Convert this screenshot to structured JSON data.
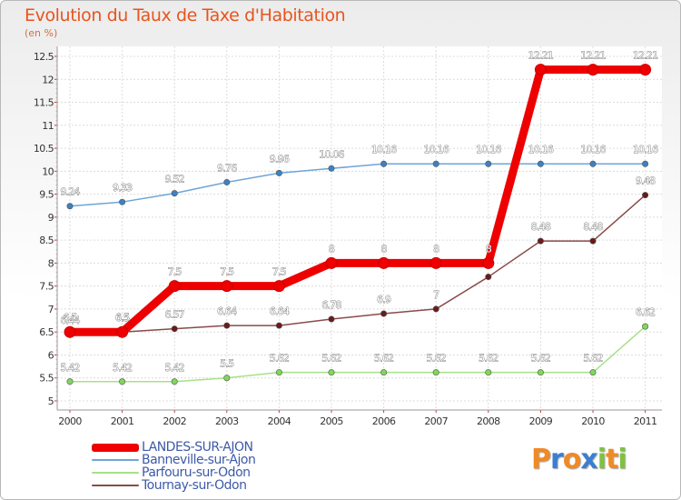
{
  "header": {
    "title": "Evolution du Taux de Taxe d'Habitation",
    "subtitle": "(en %)"
  },
  "chart_data": {
    "type": "line",
    "title": "Evolution du Taux de Taxe d'Habitation",
    "ylabel": "(en %)",
    "xlabel": "",
    "ylim": [
      5,
      12.5
    ],
    "yticks": [
      "5",
      "5.5",
      "6",
      "6.5",
      "7",
      "7.5",
      "8",
      "8.5",
      "9",
      "9.5",
      "10",
      "10.5",
      "11",
      "11.5",
      "12",
      "12.5"
    ],
    "x": [
      "2000",
      "2001",
      "2002",
      "2003",
      "2004",
      "2005",
      "2006",
      "2007",
      "2008",
      "2009",
      "2010",
      "2011"
    ],
    "series": [
      {
        "name": "LANDES-SUR-AJON",
        "color": "#ee0000",
        "marker_fill": "#ee0000",
        "label_color": "#ffffff",
        "values": [
          6.5,
          6.5,
          7.5,
          7.5,
          7.5,
          8,
          8,
          8,
          8,
          12.21,
          12.21,
          12.21
        ],
        "labels": [
          "6.5",
          "6.5",
          "7.5",
          "7.5",
          "7.5",
          "8",
          "8",
          "8",
          "8",
          "12.21",
          "12.21",
          "12.21"
        ]
      },
      {
        "name": "Banneville-sur-Ajon",
        "color": "#6ea5d6",
        "marker_fill": "#3b82c4",
        "label_color": "#ffffff",
        "values": [
          9.24,
          9.33,
          9.52,
          9.76,
          9.96,
          10.06,
          10.16,
          10.16,
          10.16,
          10.16,
          10.16,
          10.16
        ],
        "labels": [
          "9.24",
          "9.33",
          "9.52",
          "9.76",
          "9.96",
          "10.06",
          "10.16",
          "10.16",
          "10.16",
          "10.16",
          "10.16",
          "10.16"
        ]
      },
      {
        "name": "Parfouru-sur-Odon",
        "color": "#a8e08a",
        "marker_fill": "#7ed957",
        "label_color": "#ffffff",
        "values": [
          5.42,
          5.42,
          5.42,
          5.5,
          5.62,
          5.62,
          5.62,
          5.62,
          5.62,
          5.62,
          5.62,
          6.62
        ],
        "labels": [
          "5.42",
          "5.42",
          "5.42",
          "5.5",
          "5.62",
          "5.62",
          "5.62",
          "5.62",
          "5.62",
          "5.62",
          "5.62",
          "6.62"
        ]
      },
      {
        "name": "Tournay-sur-Odon",
        "color": "#8a4a4a",
        "marker_fill": "#6b1a1a",
        "label_color": "#ffffff",
        "values": [
          6.44,
          6.5,
          6.57,
          6.64,
          6.64,
          6.78,
          6.9,
          7,
          7.7,
          8.48,
          8.48,
          9.48
        ],
        "labels": [
          "6.44",
          "6.5",
          "6.57",
          "6.64",
          "6.64",
          "6.78",
          "6.9",
          "7",
          "",
          "8.48",
          "8.48",
          "9.48"
        ]
      }
    ]
  },
  "legend": [
    {
      "label": "LANDES-SUR-AJON",
      "color": "#ee0000",
      "thickness": 9
    },
    {
      "label": "Banneville-sur-Ajon",
      "color": "#6ea5d6",
      "thickness": 2
    },
    {
      "label": "Parfouru-sur-Odon",
      "color": "#a8e08a",
      "thickness": 2
    },
    {
      "label": "Tournay-sur-Odon",
      "color": "#8a4a4a",
      "thickness": 2
    }
  ],
  "logo": {
    "text": "Proxiti",
    "letters": [
      {
        "ch": "P",
        "color": "#f08a24"
      },
      {
        "ch": "r",
        "color": "#3a7fd0"
      },
      {
        "ch": "o",
        "color": "#f08a24"
      },
      {
        "ch": "x",
        "color": "#3a7fd0"
      },
      {
        "ch": "i",
        "color": "#7fc241"
      },
      {
        "ch": "t",
        "color": "#f08a24"
      },
      {
        "ch": "i",
        "color": "#7fc241"
      }
    ]
  }
}
